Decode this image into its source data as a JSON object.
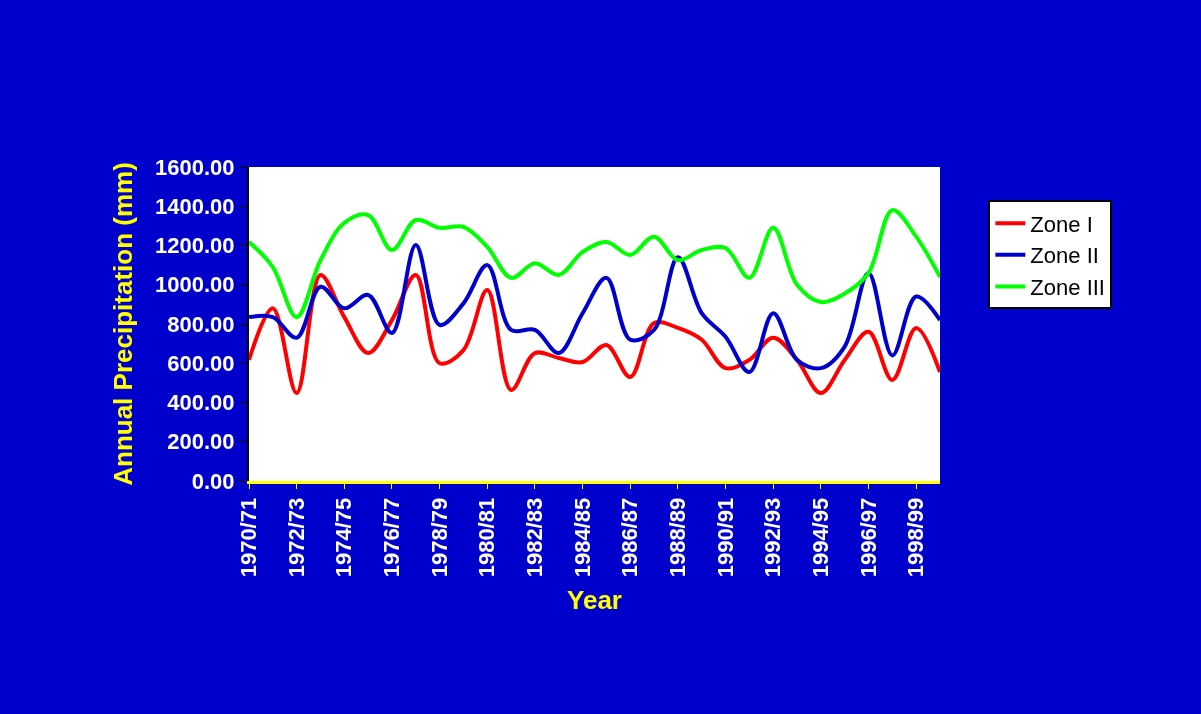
{
  "chart_data": {
    "type": "line",
    "xlabel": "Year",
    "ylabel": "Annual Precipitation (mm)",
    "categories": [
      "1970/71",
      null,
      "1972/73",
      null,
      "1974/75",
      null,
      "1976/77",
      null,
      "1978/79",
      null,
      "1980/81",
      null,
      "1982/83",
      null,
      "1984/85",
      null,
      "1986/87",
      null,
      "1988/89",
      null,
      "1990/91",
      null,
      "1992/93",
      null,
      "1994/95",
      null,
      "1996/97",
      null,
      "1998/99",
      null
    ],
    "series": [
      {
        "name": "Zone I",
        "color": "#ff0000",
        "values": [
          617,
          880,
          448,
          1050,
          835,
          652,
          820,
          1050,
          600,
          667,
          973,
          464,
          652,
          627,
          606,
          693,
          530,
          805,
          780,
          720,
          575,
          617,
          730,
          617,
          448,
          617,
          760,
          515,
          780,
          555
        ]
      },
      {
        "name": "Zone II",
        "color": "#0000cc",
        "values": [
          835,
          835,
          730,
          990,
          880,
          948,
          754,
          1202,
          795,
          905,
          1100,
          770,
          770,
          652,
          855,
          1035,
          720,
          770,
          1140,
          855,
          735,
          555,
          855,
          617,
          575,
          685,
          1060,
          640,
          940,
          820
        ]
      },
      {
        "name": "Zone III",
        "color": "#00ff00",
        "values": [
          1218,
          1090,
          835,
          1125,
          1315,
          1355,
          1177,
          1330,
          1290,
          1295,
          1193,
          1035,
          1110,
          1050,
          1167,
          1218,
          1152,
          1245,
          1125,
          1177,
          1187,
          1035,
          1290,
          1000,
          912,
          955,
          1060,
          1380,
          1245,
          1040
        ]
      }
    ],
    "ylim": [
      0,
      1600
    ],
    "yticks": [
      {
        "value": 0,
        "label": "0.00"
      },
      {
        "value": 200,
        "label": "200.00"
      },
      {
        "value": 400,
        "label": "400.00"
      },
      {
        "value": 600,
        "label": "600.00"
      },
      {
        "value": 800,
        "label": "800.00"
      },
      {
        "value": 1000,
        "label": "1000.00"
      },
      {
        "value": 1200,
        "label": "1200.00"
      },
      {
        "value": 1400,
        "label": "1400.00"
      },
      {
        "value": 1600,
        "label": "1600.00"
      }
    ],
    "grid": false,
    "legend": "right",
    "marker": "none",
    "line_style": "solid"
  }
}
